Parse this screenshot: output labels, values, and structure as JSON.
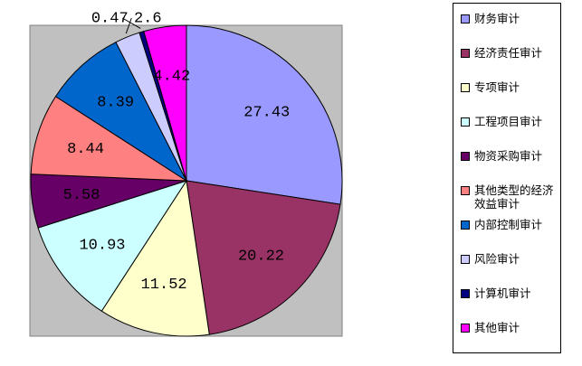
{
  "chart_data": {
    "type": "pie",
    "categories": [
      "财务审计",
      "经济责任审计",
      "专项审计",
      "工程项目审计",
      "物资采购审计",
      "其他类型的经济效益审计",
      "内部控制审计",
      "风险审计",
      "计算机审计",
      "其他审计"
    ],
    "values": [
      27.43,
      20.22,
      11.52,
      10.93,
      5.58,
      8.44,
      8.39,
      2.6,
      0.47,
      4.42
    ],
    "colors": [
      "#9999ff",
      "#993366",
      "#ffffcc",
      "#ccffff",
      "#660066",
      "#ff8080",
      "#0066cc",
      "#ccccff",
      "#000080",
      "#ff00ff"
    ]
  }
}
